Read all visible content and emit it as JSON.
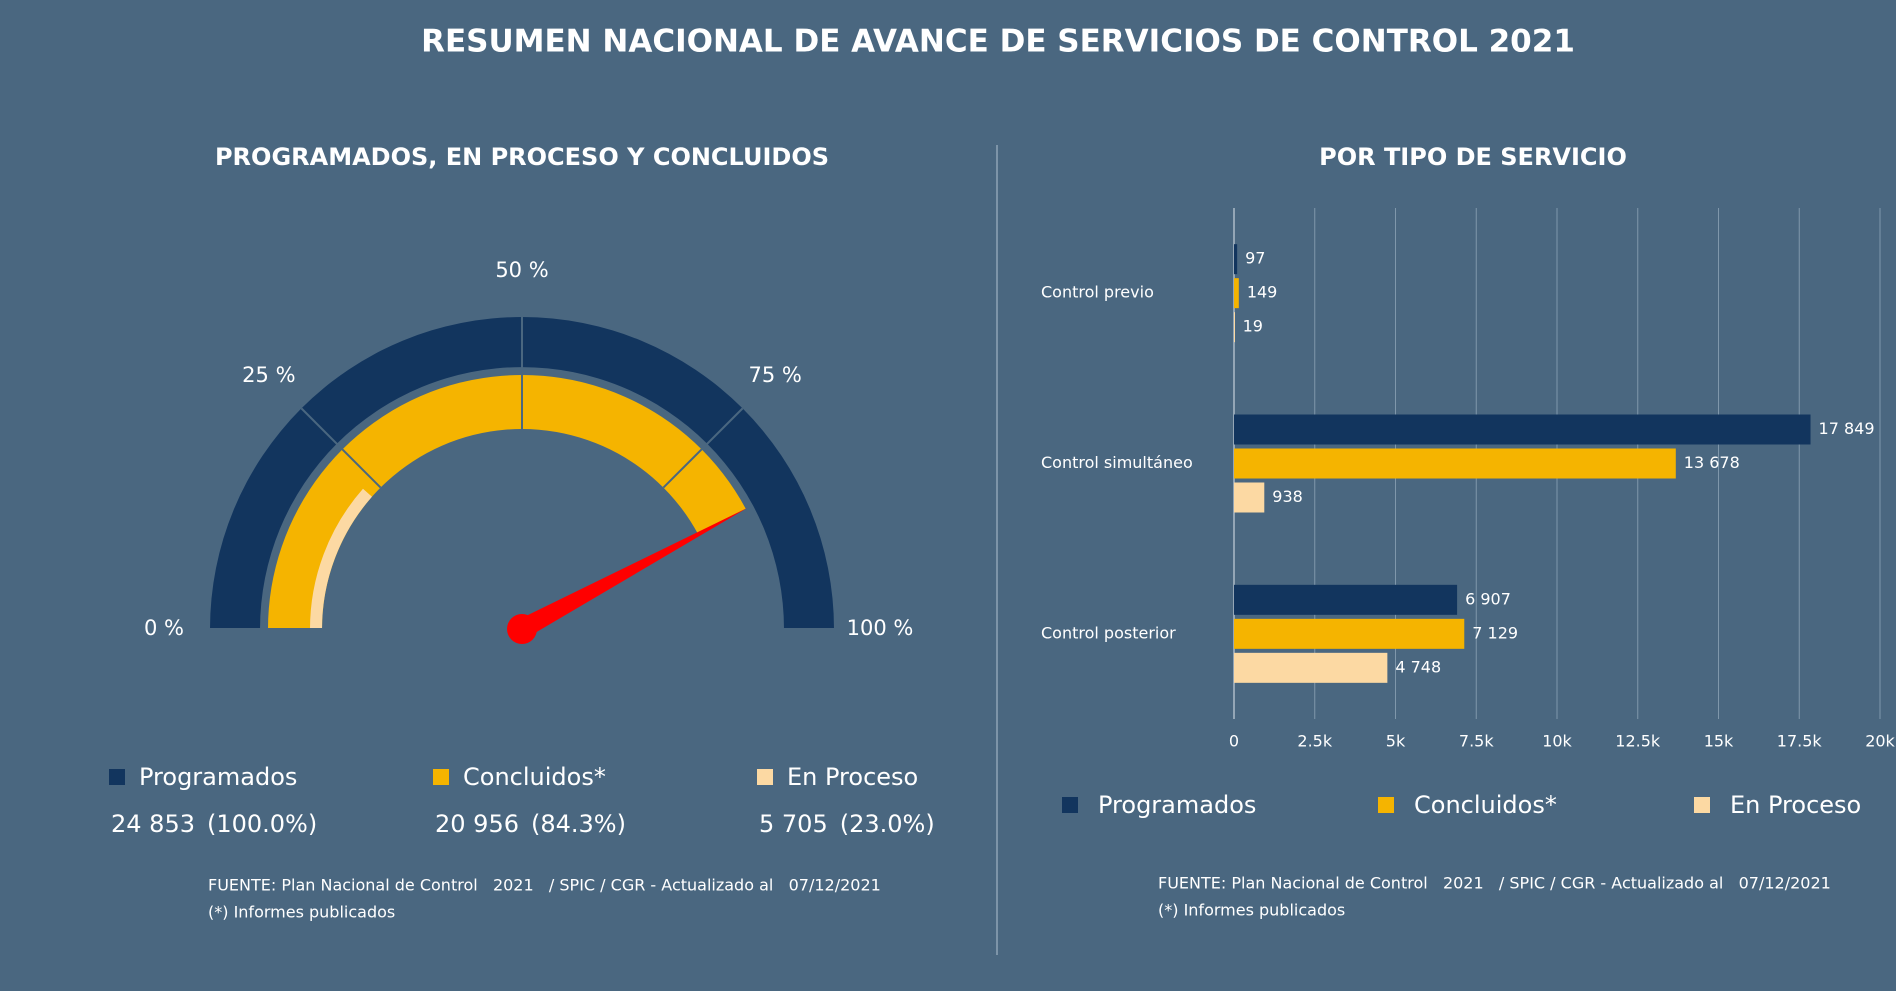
{
  "title": "RESUMEN NACIONAL DE AVANCE DE SERVICIOS DE CONTROL 2021",
  "chart_data": [
    {
      "type": "gauge",
      "title": "PROGRAMADOS, EN PROCESO Y CONCLUIDOS",
      "ticks": [
        {
          "value": 0,
          "label": "0 %"
        },
        {
          "value": 25,
          "label": "25 %"
        },
        {
          "value": 50,
          "label": "50 %"
        },
        {
          "value": 75,
          "label": "75 %"
        },
        {
          "value": 100,
          "label": "100 %"
        }
      ],
      "series": [
        {
          "name": "Programados",
          "color": "#12355e",
          "value": 24853,
          "value_label": "24 853",
          "percent": 100.0,
          "percent_label": "(100.0%)"
        },
        {
          "name": "Concluidos*",
          "color": "#f5b400",
          "value": 20956,
          "value_label": "20 956",
          "percent": 84.3,
          "percent_label": "(84.3%)"
        },
        {
          "name": "En Proceso",
          "color": "#fcd9a3",
          "value": 5705,
          "value_label": "5 705",
          "percent": 23.0,
          "percent_label": "(23.0%)"
        }
      ],
      "needle_color": "#ff0000",
      "source": "FUENTE: Plan Nacional de Control   2021   / SPIC / CGR - Actualizado al   07/12/2021",
      "note": "(*) Informes publicados"
    },
    {
      "type": "hbar",
      "title": "POR TIPO DE SERVICIO",
      "categories": [
        "Control previo",
        "Control simultáneo",
        "Control posterior"
      ],
      "series": [
        {
          "name": "Programados",
          "color": "#12355e",
          "values": [
            97,
            17849,
            6907
          ],
          "value_labels": [
            "97",
            "17 849",
            "6 907"
          ]
        },
        {
          "name": "Concluidos*",
          "color": "#f5b400",
          "values": [
            149,
            13678,
            7129
          ],
          "value_labels": [
            "149",
            "13 678",
            "7 129"
          ]
        },
        {
          "name": "En Proceso",
          "color": "#fcd9a3",
          "values": [
            19,
            938,
            4748
          ],
          "value_labels": [
            "19",
            "938",
            "4 748"
          ]
        }
      ],
      "xlim": [
        0,
        20000
      ],
      "xticks": [
        0,
        {
          "value": 2500,
          "label": "2.5k"
        },
        {
          "value": 5000,
          "label": "5k"
        },
        {
          "value": 7500,
          "label": "7.5k"
        },
        {
          "value": 10000,
          "label": "10k"
        },
        {
          "value": 12500,
          "label": "12.5k"
        },
        {
          "value": 15000,
          "label": "15k"
        },
        {
          "value": 17500,
          "label": "17.5k"
        },
        {
          "value": 20000,
          "label": "20k"
        }
      ],
      "grid": true,
      "source": "FUENTE: Plan Nacional de Control   2021   / SPIC / CGR - Actualizado al   07/12/2021",
      "note": "(*) Informes publicados"
    }
  ]
}
